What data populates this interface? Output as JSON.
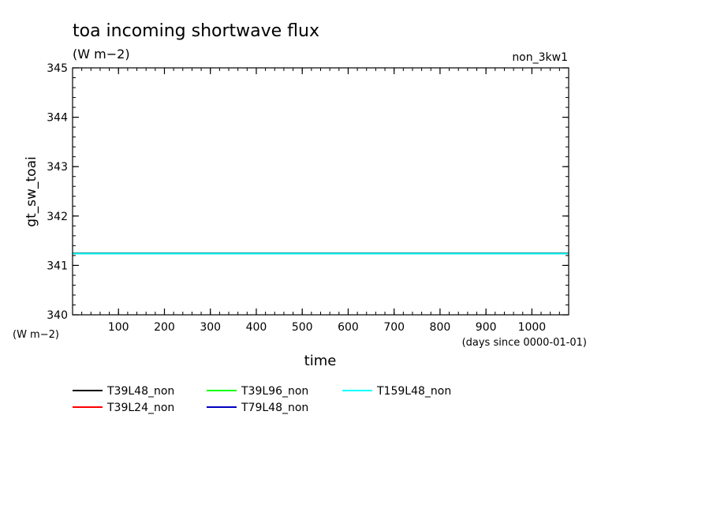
{
  "chart_data": {
    "type": "line",
    "title": "toa incoming shortwave flux",
    "subtitle": "(W m−2)",
    "run_label": "non_3kw1",
    "ylabel": "gt_sw_toai",
    "yunit": "(W m−2)",
    "xlabel": "time",
    "xunit": "(days since 0000-01-01)",
    "xlim": [
      0,
      1080
    ],
    "ylim": [
      340,
      345
    ],
    "xticks": [
      100,
      200,
      300,
      400,
      500,
      600,
      700,
      800,
      900,
      1000
    ],
    "yticks": [
      340,
      341,
      342,
      343,
      344,
      345
    ],
    "x_minor_step": 20,
    "y_minor_step": 0.2,
    "grid": false,
    "legend_position": "bottom-left",
    "series": [
      {
        "name": "T39L48_non",
        "color": "#000000",
        "x": [
          0,
          1080
        ],
        "y": [
          341.25,
          341.25
        ]
      },
      {
        "name": "T39L24_non",
        "color": "#ff0000",
        "x": [
          0,
          1080
        ],
        "y": [
          341.24,
          341.24
        ]
      },
      {
        "name": "T39L96_non",
        "color": "#00ff00",
        "x": [
          0,
          1080
        ],
        "y": [
          341.24,
          341.24
        ]
      },
      {
        "name": "T79L48_non",
        "color": "#0000c0",
        "x": [
          0,
          1080
        ],
        "y": [
          341.24,
          341.24
        ]
      },
      {
        "name": "T159L48_non",
        "color": "#00ffff",
        "x": [
          0,
          1080
        ],
        "y": [
          341.24,
          341.24
        ]
      }
    ]
  }
}
